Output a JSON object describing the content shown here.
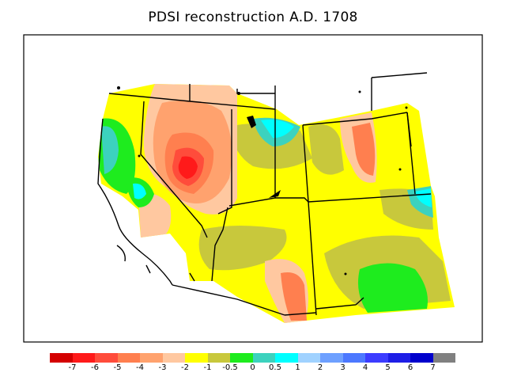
{
  "title": "PDSI reconstruction A.D. 1708",
  "legend": {
    "colors": [
      "#d40000",
      "#ff1a1a",
      "#ff4c3b",
      "#ff7f4f",
      "#ffa26e",
      "#ffc8a0",
      "#ffff00",
      "#c8c83c",
      "#1eec1e",
      "#3cd2be",
      "#00ffff",
      "#a0d2ff",
      "#6ea0ff",
      "#4c78ff",
      "#3c3cff",
      "#1e1ee6",
      "#0000cc",
      "#808080"
    ],
    "labels": [
      "-7",
      "-6",
      "-5",
      "-4",
      "-3",
      "-2",
      "-1",
      "-0.5",
      "0",
      "0.5",
      "1",
      "2",
      "3",
      "4",
      "5",
      "6",
      "7"
    ]
  }
}
